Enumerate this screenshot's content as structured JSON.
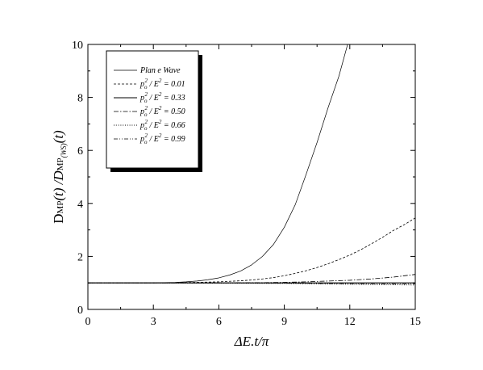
{
  "chart_data": {
    "type": "line",
    "xlabel": "ΔE.t/π",
    "ylabel": "Dₘₚ(t) / Dₘₚ₍ᵂₛ₎(t)",
    "ylabel_parts": {
      "main": "D",
      "sub1": "MP",
      "mid": "(t) /D",
      "sub2": "MP",
      "sub3": "(WS)",
      "end": "(t)"
    },
    "xlim": [
      0,
      15
    ],
    "ylim": [
      0,
      10
    ],
    "xticks": [
      0,
      3,
      6,
      9,
      12,
      15
    ],
    "yticks": [
      0,
      2,
      4,
      6,
      8,
      10
    ],
    "grid": false,
    "legend_position": "top-left",
    "series": [
      {
        "name": "Plan e Wave",
        "dash": "solid-thin",
        "x": [
          0,
          1,
          2,
          3,
          3.5,
          4,
          4.5,
          5,
          5.5,
          6,
          6.5,
          7,
          7.5,
          8,
          8.5,
          9,
          9.5,
          10,
          10.5,
          11,
          11.5,
          11.9
        ],
        "y": [
          1,
          1,
          1,
          1,
          1.01,
          1.02,
          1.04,
          1.07,
          1.12,
          1.19,
          1.3,
          1.45,
          1.68,
          2.0,
          2.45,
          3.1,
          3.95,
          5.1,
          6.3,
          7.6,
          8.8,
          10.0
        ]
      },
      {
        "name": "pₒ² / E² = 0.01",
        "dash": "dashed",
        "x": [
          0,
          3,
          4,
          5,
          6,
          7,
          7.5,
          8,
          8.5,
          9,
          9.5,
          10,
          10.5,
          11,
          11.5,
          12,
          12.5,
          13,
          13.5,
          14,
          14.5,
          15
        ],
        "y": [
          1,
          1,
          1.01,
          1.02,
          1.04,
          1.08,
          1.11,
          1.15,
          1.2,
          1.27,
          1.36,
          1.46,
          1.58,
          1.72,
          1.88,
          2.05,
          2.25,
          2.48,
          2.72,
          2.98,
          3.2,
          3.45
        ]
      },
      {
        "name": "pₒ² / E² = 0.33",
        "dash": "solid",
        "x": [
          0,
          3,
          6,
          9,
          12,
          15
        ],
        "y": [
          1,
          1,
          1,
          1,
          1.0,
          1.0
        ]
      },
      {
        "name": "pₒ² / E² = 0.50",
        "dash": "dash-dot",
        "x": [
          0,
          3,
          6,
          8,
          9,
          10,
          11,
          12,
          13,
          14,
          15
        ],
        "y": [
          1,
          1,
          1.0,
          1.01,
          1.02,
          1.04,
          1.07,
          1.1,
          1.15,
          1.22,
          1.32
        ]
      },
      {
        "name": "pₒ² / E² = 0.66",
        "dash": "dotted",
        "x": [
          0,
          3,
          6,
          9,
          10,
          11,
          12,
          13,
          14,
          15
        ],
        "y": [
          1,
          1,
          0.99,
          0.98,
          0.97,
          0.96,
          0.95,
          0.94,
          0.93,
          0.92
        ]
      },
      {
        "name": "pₒ² / E² = 0.99",
        "dash": "dash-dot-dot",
        "x": [
          0,
          3,
          6,
          9,
          12,
          15
        ],
        "y": [
          1,
          1,
          1,
          0.99,
          0.97,
          0.96
        ]
      }
    ],
    "legend_entries": [
      {
        "label": "Plan e Wave",
        "type": "plain"
      },
      {
        "pre": "p",
        "sub": "o",
        "sup": "2",
        "mid": " / E",
        "sup2": "2",
        "eq": " = 0.01",
        "type": "math"
      },
      {
        "pre": "p",
        "sub": "o",
        "sup": "2",
        "mid": " / E",
        "sup2": "2",
        "eq": " = 0.33",
        "type": "math"
      },
      {
        "pre": "p",
        "sub": "o",
        "sup": "2",
        "mid": " / E",
        "sup2": "2",
        "eq": " = 0.50",
        "type": "math"
      },
      {
        "pre": "p",
        "sub": "o",
        "sup": "2",
        "mid": " / E",
        "sup2": "2",
        "eq": " = 0.66",
        "type": "math"
      },
      {
        "pre": "p",
        "sub": "o",
        "sup": "2",
        "mid": " / E",
        "sup2": "2",
        "eq": " = 0.99",
        "type": "math"
      }
    ]
  }
}
